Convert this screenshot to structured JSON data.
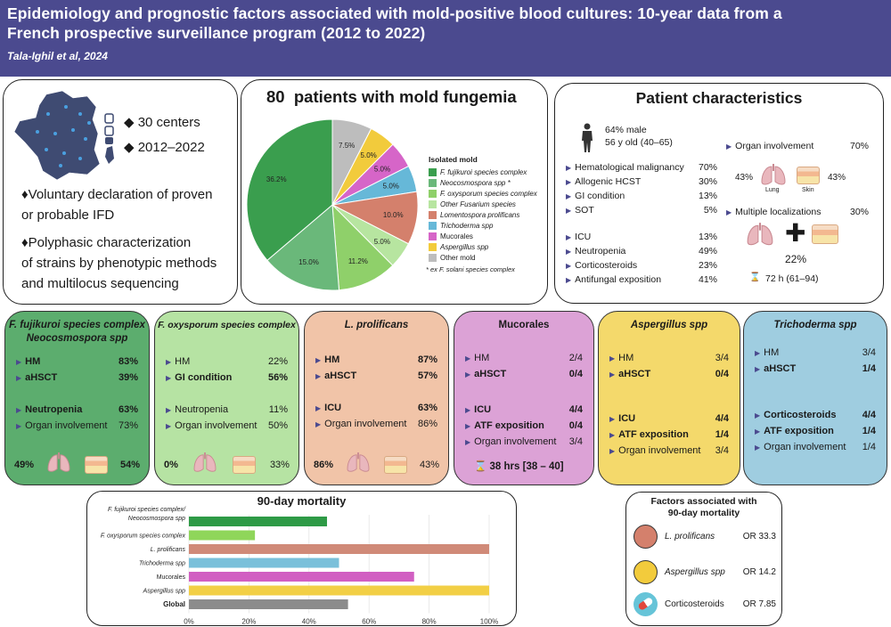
{
  "header": {
    "title_line1": "Epidemiology and prognostic factors associated with mold-positive blood cultures: 10-year data from a",
    "title_line2": "French prospective surveillance program (2012 to 2022)",
    "authors": "Tala-Ighil et al, 2024"
  },
  "overview": {
    "centers": "30 centers",
    "years": "2012–2022",
    "point1_line1": "♦Voluntary declaration of proven",
    "point1_line2": "or probable IFD",
    "point2_line1": "♦Polyphasic characterization",
    "point2_line2": "of strains by phenotypic methods",
    "point2_line3": "and multilocus sequencing"
  },
  "pie": {
    "title_num": "80",
    "title_text": "patients with mold fungemia",
    "legend_title": "Isolated mold",
    "footnote": "ex F. solani species complex",
    "slices": [
      {
        "label": "F. fujikuroi species complex",
        "value": 36.2,
        "pct_label": "36.2%",
        "color": "#3a9e4e"
      },
      {
        "label": "Neocosmospora spp",
        "value": 15.0,
        "pct_label": "15.0%",
        "color": "#6ab87a"
      },
      {
        "label": "F. oxysporum species complex",
        "value": 11.2,
        "pct_label": "11.2%",
        "color": "#8fd06a"
      },
      {
        "label": "Other Fusarium species",
        "value": 5.0,
        "pct_label": "5.0%",
        "color": "#b7e5a0"
      },
      {
        "label": "Lomentospora prolificans",
        "value": 10.0,
        "pct_label": "10.0%",
        "color": "#d4806c"
      },
      {
        "label": "Trichoderma spp",
        "value": 5.0,
        "pct_label": "5.0%",
        "color": "#66b8d8"
      },
      {
        "label": "Mucorales",
        "value": 5.0,
        "pct_label": "5.0%",
        "color": "#d665c8"
      },
      {
        "label": "Aspergillus spp",
        "value": 5.0,
        "pct_label": "5.0%",
        "color": "#f2cb3c"
      },
      {
        "label": "Other mold",
        "value": 7.5,
        "pct_label": "7.5%",
        "color": "#bdbdbd"
      }
    ]
  },
  "characteristics": {
    "title": "Patient characteristics",
    "male": "64% male",
    "age": "56 y old (40–65)",
    "left_rows": [
      {
        "label": "Hematological malignancy",
        "value": "70%"
      },
      {
        "label": "Allogenic HCST",
        "value": "30%"
      },
      {
        "label": "GI condition",
        "value": "13%"
      },
      {
        "label": "SOT",
        "value": "5%"
      },
      {
        "label": "ICU",
        "value": "13%"
      },
      {
        "label": "Neutropenia",
        "value": "49%"
      },
      {
        "label": "Corticosteroids",
        "value": "23%"
      },
      {
        "label": "Antifungal exposition",
        "value": "41%"
      }
    ],
    "organ": {
      "label": "Organ involvement",
      "value": "70%"
    },
    "lung_pct": "43%",
    "lung_label": "Lung",
    "skin_pct": "43%",
    "skin_label": "Skin",
    "multi": {
      "label": "Multiple localizations",
      "value": "30%"
    },
    "multi_pct": "22%",
    "time": "72 h (61–94)"
  },
  "cards": [
    {
      "title1": "F. fujikuroi species complex",
      "title2": "Neocosmospora spp",
      "rows": [
        [
          "HM",
          "83%",
          true
        ],
        [
          "aHSCT",
          "39%",
          true
        ],
        [
          "Neutropenia",
          "63%",
          true
        ],
        [
          "Organ involvement",
          "73%",
          false
        ]
      ],
      "lung": "49%",
      "skin": "54%"
    },
    {
      "title1": "F. oxysporum species complex",
      "rows": [
        [
          "HM",
          "22%",
          false
        ],
        [
          "GI condition",
          "56%",
          true
        ],
        [
          "Neutropenia",
          "11%",
          false
        ],
        [
          "Organ involvement",
          "50%",
          false
        ]
      ],
      "lung": "0%",
      "skin": "33%"
    },
    {
      "title1": "L. prolificans",
      "rows": [
        [
          "HM",
          "87%",
          true
        ],
        [
          "aHSCT",
          "57%",
          true
        ],
        [
          "ICU",
          "63%",
          true
        ],
        [
          "Organ involvement",
          "86%",
          false
        ]
      ],
      "lung": "86%",
      "skin": "43%"
    },
    {
      "title1": "Mucorales",
      "rows": [
        [
          "HM",
          "2/4",
          false
        ],
        [
          "aHSCT",
          "0/4",
          true
        ],
        [
          "ICU",
          "4/4",
          true
        ],
        [
          "ATF exposition",
          "0/4",
          true
        ],
        [
          "Organ involvement",
          "3/4",
          false
        ]
      ],
      "time": "38 hrs [38 – 40]"
    },
    {
      "title1": "Aspergillus spp",
      "rows": [
        [
          "HM",
          "3/4",
          false
        ],
        [
          "aHSCT",
          "0/4",
          true
        ],
        [
          "ICU",
          "4/4",
          true
        ],
        [
          "ATF exposition",
          "1/4",
          true
        ],
        [
          "Organ involvement",
          "3/4",
          false
        ]
      ]
    },
    {
      "title1": "Trichoderma spp",
      "rows": [
        [
          "HM",
          "3/4",
          false
        ],
        [
          "aHSCT",
          "1/4",
          true
        ],
        [
          "Corticosteroids",
          "4/4",
          true
        ],
        [
          "ATF exposition",
          "1/4",
          true
        ],
        [
          "Organ involvement",
          "1/4",
          false
        ]
      ]
    }
  ],
  "chart_data": {
    "type": "bar",
    "title": "90-day mortality",
    "categories": [
      "F. fujikuroi species complex/ Neocosmospora spp",
      "F. oxysporum species complex",
      "L. prolificans",
      "Trichoderma spp",
      "Mucorales",
      "Aspergillus spp",
      "Global"
    ],
    "values": [
      46,
      22,
      100,
      50,
      75,
      100,
      53
    ],
    "colors": [
      "#2e9a46",
      "#8fd65a",
      "#d08a78",
      "#7ac0da",
      "#d15fc2",
      "#f2cf45",
      "#8c8c8c"
    ],
    "xlim": [
      0,
      100
    ],
    "xticks": [
      "0%",
      "20%",
      "40%",
      "60%",
      "80%",
      "100%"
    ],
    "orientation": "horizontal"
  },
  "factors": {
    "title_line1": "Factors associated with",
    "title_line2": "90-day mortality",
    "items": [
      {
        "label": "L. prolificans",
        "or": "OR 33.3",
        "color": "#d4806c"
      },
      {
        "label": "Aspergillus spp",
        "or": "OR 14.2",
        "color": "#f2cb3c"
      },
      {
        "label": "Corticosteroids",
        "or": "OR 7.85",
        "color": "#66c4d8"
      }
    ]
  }
}
